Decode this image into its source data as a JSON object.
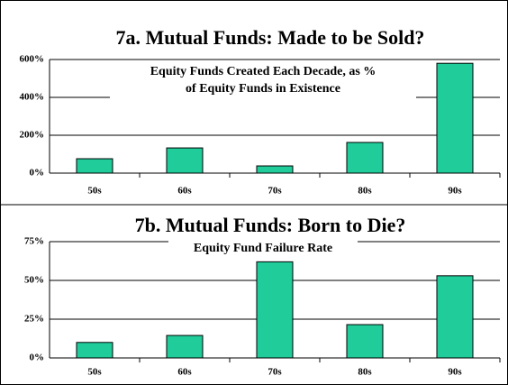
{
  "chart_data": [
    {
      "type": "bar",
      "title": "7a. Mutual Funds: Made to be Sold?",
      "subtitle": [
        "Equity Funds Created Each Decade, as %",
        "of Equity Funds in Existence"
      ],
      "categories": [
        "50s",
        "60s",
        "70s",
        "80s",
        "90s"
      ],
      "values": [
        76,
        133,
        38,
        162,
        580
      ],
      "color": "#1fcc9a",
      "ylim": [
        0,
        600
      ],
      "yticks": [
        {
          "value": 0,
          "label": "0%"
        },
        {
          "value": 200,
          "label": "200%"
        },
        {
          "value": 400,
          "label": "400%"
        },
        {
          "value": 600,
          "label": "600%"
        }
      ],
      "grid": true
    },
    {
      "type": "bar",
      "title": "7b. Mutual Funds: Born to Die?",
      "subtitle": [
        "Equity Fund Failure Rate"
      ],
      "categories": [
        "50s",
        "60s",
        "70s",
        "80s",
        "90s"
      ],
      "values": [
        10,
        14.5,
        62,
        21.5,
        53
      ],
      "color": "#1fcc9a",
      "ylim": [
        0,
        75
      ],
      "yticks": [
        {
          "value": 0,
          "label": "0%"
        },
        {
          "value": 25,
          "label": "25%"
        },
        {
          "value": 50,
          "label": "50%"
        },
        {
          "value": 75,
          "label": "75%"
        }
      ],
      "grid": true
    }
  ]
}
